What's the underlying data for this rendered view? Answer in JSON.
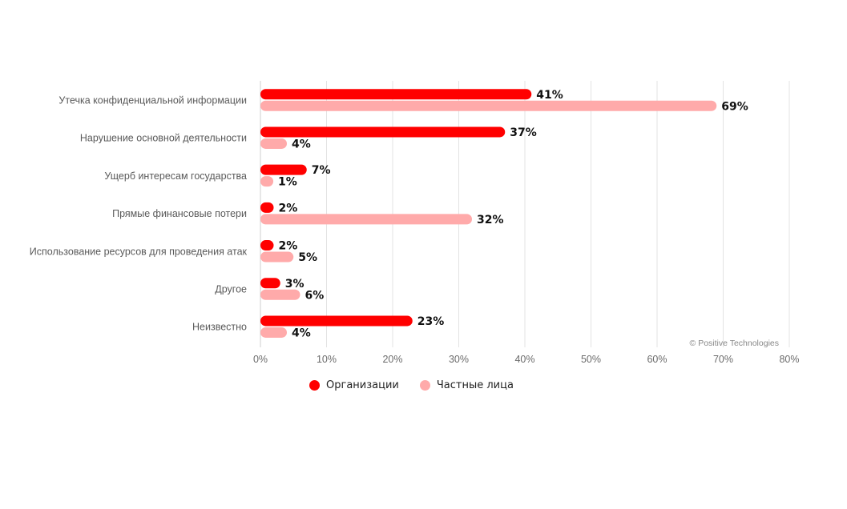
{
  "chart_data": {
    "type": "bar",
    "orientation": "horizontal",
    "categories": [
      "Утечка конфиденциальной информации",
      "Нарушение основной деятельности",
      "Ущерб интересам государства",
      "Прямые финансовые потери",
      "Использование ресурсов для проведения атак",
      "Другое",
      "Неизвестно"
    ],
    "series": [
      {
        "name": "Организации",
        "color": "#ff0000",
        "values": [
          41,
          37,
          7,
          2,
          2,
          3,
          23
        ],
        "labels": [
          "41%",
          "37%",
          "7%",
          "2%",
          "2%",
          "3%",
          "23%"
        ]
      },
      {
        "name": "Частные лица",
        "color": "#ffaaaa",
        "values": [
          69,
          4,
          1,
          32,
          5,
          6,
          4
        ],
        "labels": [
          "69%",
          "4%",
          "1%",
          "32%",
          "5%",
          "6%",
          "4%"
        ]
      }
    ],
    "xlim": [
      0,
      80
    ],
    "ticks": [
      0,
      10,
      20,
      30,
      40,
      50,
      60,
      70,
      80
    ],
    "tick_labels": [
      "0%",
      "10%",
      "20%",
      "30%",
      "40%",
      "50%",
      "60%",
      "70%",
      "80%"
    ],
    "grid": true,
    "legend_position": "bottom",
    "credit": "© Positive Technologies"
  }
}
